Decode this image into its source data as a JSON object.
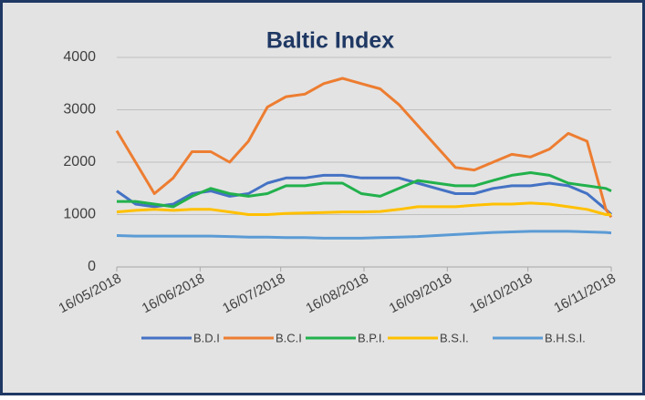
{
  "chart_data": {
    "type": "line",
    "title": "Baltic Index",
    "x": [
      "16/05/2018",
      "23/05/2018",
      "30/05/2018",
      "06/06/2018",
      "13/06/2018",
      "20/06/2018",
      "27/06/2018",
      "04/07/2018",
      "11/07/2018",
      "18/07/2018",
      "25/07/2018",
      "01/08/2018",
      "08/08/2018",
      "15/08/2018",
      "22/08/2018",
      "29/08/2018",
      "05/09/2018",
      "12/09/2018",
      "19/09/2018",
      "26/09/2018",
      "03/10/2018",
      "10/10/2018",
      "17/10/2018",
      "24/10/2018",
      "31/10/2018",
      "07/11/2018",
      "14/11/2018",
      "16/11/2018"
    ],
    "series": [
      {
        "name": "B.D.I",
        "color": "#4472c4",
        "values": [
          1450,
          1200,
          1150,
          1200,
          1400,
          1450,
          1350,
          1400,
          1600,
          1700,
          1700,
          1750,
          1750,
          1700,
          1700,
          1700,
          1600,
          1500,
          1400,
          1400,
          1500,
          1550,
          1550,
          1600,
          1550,
          1400,
          1100,
          1000
        ]
      },
      {
        "name": "B.C.I",
        "color": "#ed7d31",
        "values": [
          2600,
          2000,
          1400,
          1700,
          2200,
          2200,
          2000,
          2400,
          3050,
          3250,
          3300,
          3500,
          3600,
          3500,
          3400,
          3100,
          2700,
          2300,
          1900,
          1850,
          2000,
          2150,
          2100,
          2250,
          2550,
          2400,
          1100,
          950
        ]
      },
      {
        "name": "B.P.I.",
        "color": "#22b14c",
        "values": [
          1250,
          1250,
          1200,
          1150,
          1350,
          1500,
          1400,
          1350,
          1400,
          1550,
          1550,
          1600,
          1600,
          1400,
          1350,
          1500,
          1650,
          1600,
          1550,
          1550,
          1650,
          1750,
          1800,
          1750,
          1600,
          1550,
          1500,
          1450
        ]
      },
      {
        "name": "B.S.I.",
        "color": "#ffc000",
        "values": [
          1050,
          1080,
          1100,
          1080,
          1100,
          1100,
          1050,
          1000,
          1000,
          1020,
          1030,
          1040,
          1050,
          1050,
          1060,
          1100,
          1150,
          1150,
          1150,
          1180,
          1200,
          1200,
          1220,
          1200,
          1150,
          1100,
          1000,
          1000
        ]
      },
      {
        "name": "B.H.S.I.",
        "color": "#5b9bd5",
        "values": [
          600,
          590,
          590,
          590,
          590,
          590,
          580,
          570,
          570,
          560,
          560,
          550,
          550,
          550,
          560,
          570,
          580,
          600,
          620,
          640,
          660,
          670,
          680,
          680,
          680,
          670,
          660,
          650
        ]
      }
    ],
    "xlim": [
      "16/05/2018",
      "16/11/2018"
    ],
    "xticks": [
      "16/05/2018",
      "16/06/2018",
      "16/07/2018",
      "16/08/2018",
      "16/09/2018",
      "16/10/2018",
      "16/11/2018"
    ],
    "ylim": [
      0,
      4000
    ],
    "yticks": [
      0,
      1000,
      2000,
      3000,
      4000
    ],
    "grid": true,
    "legend": "bottom"
  }
}
